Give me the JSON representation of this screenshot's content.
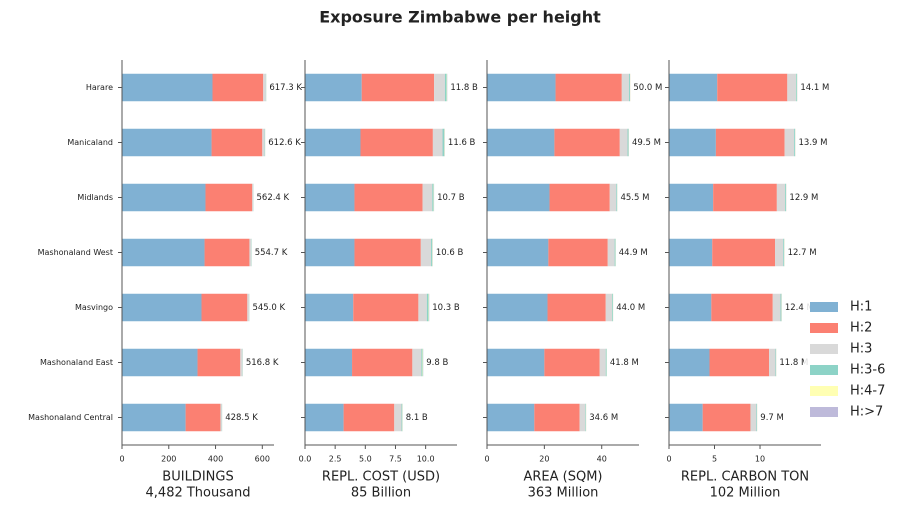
{
  "title": "Exposure Zimbabwe per height",
  "chart_data": [
    {
      "type": "bar",
      "orientation": "horizontal",
      "categories": [
        "Harare",
        "Manicaland",
        "Midlands",
        "Mashonaland West",
        "Masvingo",
        "Mashonaland East",
        "Mashonaland Central"
      ],
      "series": [
        {
          "name": "H:1",
          "color": "#80b1d3",
          "values": [
            387,
            383,
            357,
            353,
            340,
            323,
            272
          ]
        },
        {
          "name": "H:2",
          "color": "#fb8072",
          "values": [
            217,
            217,
            200,
            192,
            196,
            183,
            149
          ]
        },
        {
          "name": "H:3",
          "color": "#d9d9d9",
          "values": [
            11,
            10,
            4,
            8,
            7.5,
            9,
            6
          ]
        },
        {
          "name": "H:3-6",
          "color": "#8dd3c7",
          "values": [
            1.5,
            1.8,
            1,
            1.2,
            1,
            1.2,
            1
          ]
        },
        {
          "name": "H:4-7",
          "color": "#ffffb3",
          "values": [
            0.5,
            0.5,
            0.2,
            0.3,
            0.3,
            0.4,
            0.3
          ]
        },
        {
          "name": "H:>7",
          "color": "#bebada",
          "values": [
            0.3,
            0.3,
            0.2,
            0.2,
            0.2,
            0.2,
            0.2
          ]
        }
      ],
      "totals": [
        617.3,
        612.6,
        562.4,
        554.7,
        545.0,
        516.8,
        428.5
      ],
      "total_labels": [
        "617.3 K",
        "612.6 K",
        "562.4 K",
        "554.7 K",
        "545.0 K",
        "516.8 K",
        "428.5 K"
      ],
      "xlim": [
        0,
        650
      ],
      "xticks": [
        0,
        200,
        400,
        600
      ],
      "xlabel": "BUILDINGS",
      "xlabel_note": "4,482 Thousand"
    },
    {
      "type": "bar",
      "orientation": "horizontal",
      "series": [
        {
          "color": "#80b1d3",
          "values": [
            4.7,
            4.6,
            4.1,
            4.1,
            4.0,
            3.9,
            3.2
          ]
        },
        {
          "color": "#fb8072",
          "values": [
            6.0,
            6.0,
            5.65,
            5.5,
            5.4,
            5.0,
            4.2
          ]
        },
        {
          "color": "#d9d9d9",
          "values": [
            0.9,
            0.8,
            0.8,
            0.85,
            0.7,
            0.75,
            0.6
          ]
        },
        {
          "color": "#8dd3c7",
          "values": [
            0.15,
            0.15,
            0.1,
            0.1,
            0.15,
            0.1,
            0.07
          ]
        },
        {
          "color": "#ffffb3",
          "values": [
            0.03,
            0.03,
            0.03,
            0.03,
            0.03,
            0.03,
            0.02
          ]
        },
        {
          "color": "#bebada",
          "values": [
            0.02,
            0.02,
            0.02,
            0.02,
            0.02,
            0.02,
            0.01
          ]
        }
      ],
      "totals": [
        11.8,
        11.6,
        10.7,
        10.6,
        10.3,
        9.8,
        8.1
      ],
      "total_labels": [
        "11.8 B",
        "11.6 B",
        "10.7 B",
        "10.6 B",
        "10.3 B",
        "9.8 B",
        "8.1 B"
      ],
      "xlim": [
        0,
        12.6
      ],
      "xticks": [
        {
          "value": 0,
          "label": "0.0"
        },
        2.5,
        {
          "value": 5,
          "label": "5.0"
        },
        7.5,
        {
          "value": 10,
          "label": "10.0"
        }
      ],
      "xlabel": "REPL. COST (USD)",
      "xlabel_note": "85 Billion"
    },
    {
      "type": "bar",
      "orientation": "horizontal",
      "series": [
        {
          "color": "#80b1d3",
          "values": [
            23.9,
            23.5,
            21.8,
            21.4,
            21.1,
            20.0,
            16.5
          ]
        },
        {
          "color": "#fb8072",
          "values": [
            23.1,
            22.8,
            21.0,
            20.7,
            20.3,
            19.3,
            15.8
          ]
        },
        {
          "color": "#d9d9d9",
          "values": [
            2.5,
            2.7,
            2.3,
            2.4,
            2.2,
            2.1,
            2.0
          ]
        },
        {
          "color": "#8dd3c7",
          "values": [
            0.35,
            0.35,
            0.3,
            0.3,
            0.3,
            0.3,
            0.2
          ]
        },
        {
          "color": "#ffffb3",
          "values": [
            0.1,
            0.1,
            0.07,
            0.07,
            0.07,
            0.07,
            0.07
          ]
        },
        {
          "color": "#bebada",
          "values": [
            0.05,
            0.05,
            0.03,
            0.03,
            0.03,
            0.03,
            0.03
          ]
        }
      ],
      "totals": [
        50.0,
        49.5,
        45.5,
        44.9,
        44.0,
        41.8,
        34.6
      ],
      "total_labels": [
        "50.0 M",
        "49.5 M",
        "45.5 M",
        "44.9 M",
        "44.0 M",
        "41.8 M",
        "34.6 M"
      ],
      "xlim": [
        0,
        53
      ],
      "xticks": [
        0,
        20,
        40
      ],
      "xlabel": "AREA (SQM)",
      "xlabel_note": "363 Million"
    },
    {
      "type": "bar",
      "orientation": "horizontal",
      "series": [
        {
          "color": "#80b1d3",
          "values": [
            5.3,
            5.15,
            4.85,
            4.75,
            4.65,
            4.45,
            3.7
          ]
        },
        {
          "color": "#fb8072",
          "values": [
            7.7,
            7.55,
            7.0,
            6.9,
            6.75,
            6.55,
            5.25
          ]
        },
        {
          "color": "#d9d9d9",
          "values": [
            0.95,
            1.05,
            0.9,
            0.9,
            0.85,
            0.7,
            0.65
          ]
        },
        {
          "color": "#8dd3c7",
          "values": [
            0.1,
            0.1,
            0.1,
            0.1,
            0.1,
            0.07,
            0.07
          ]
        },
        {
          "color": "#ffffb3",
          "values": [
            0.03,
            0.03,
            0.03,
            0.03,
            0.03,
            0.02,
            0.02
          ]
        },
        {
          "color": "#bebada",
          "values": [
            0.02,
            0.02,
            0.02,
            0.02,
            0.02,
            0.01,
            0.01
          ]
        }
      ],
      "totals": [
        14.1,
        13.9,
        12.9,
        12.7,
        12.4,
        11.8,
        9.7
      ],
      "total_labels": [
        "14.1 M",
        "13.9 M",
        "12.9 M",
        "12.7 M",
        "12.4 M",
        "11.8 M",
        "9.7 M"
      ],
      "xlim": [
        0,
        16.7
      ],
      "xticks": [
        0,
        5,
        10
      ],
      "xlabel": "REPL. CARBON TON",
      "xlabel_note": "102 Million"
    }
  ]
}
